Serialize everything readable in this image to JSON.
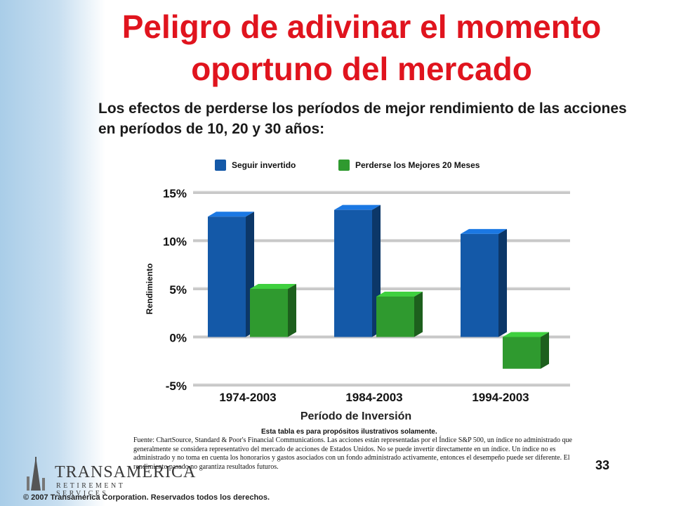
{
  "slide": {
    "title": "Peligro de adivinar el momento oportuno del mercado",
    "subtitle": "Los efectos de perderse los períodos de mejor rendimiento de las acciones en períodos de 10, 20 y 30 años:",
    "note": "Esta tabla es para propósitos ilustrativos solamente.",
    "source": "Fuente: ChartSource, Standard & Poor's Financial Communications. Las acciones están representadas por el Índice S&P 500, un índice no administrado que generalmente se considera representativo del mercado de acciones de Estados Unidos. No se puede invertir directamente en un índice. Un índice no es administrado y no toma en cuenta los honorarios y gastos asociados con un fondo administrado activamente, entonces el desempeño puede ser diferente. El rendimiento pasado no garantiza resultados futuros.",
    "page_number": "33",
    "copyright": "© 2007 Transamerica Corporation. Reservados todos los derechos.",
    "logo": {
      "name": "TRANSAMERICA",
      "tagline": "RETIREMENT SERVICES"
    }
  },
  "chart_data": {
    "type": "bar",
    "categories": [
      "1974-2003",
      "1984-2003",
      "1994-2003"
    ],
    "series": [
      {
        "name": "Seguir invertido",
        "color": "#1459a8",
        "values": [
          12.5,
          13.2,
          10.7
        ]
      },
      {
        "name": "Perderse los Mejores 20 Meses",
        "color": "#2f9a2f",
        "values": [
          5.0,
          4.2,
          -3.3
        ]
      }
    ],
    "xlabel": "Período de Inversión",
    "ylabel": "Rendimiento",
    "ylim": [
      -5,
      15
    ],
    "yticks": [
      15,
      10,
      5,
      0,
      -5
    ],
    "ytick_labels": [
      "15%",
      "10%",
      "5%",
      "0%",
      "-5%"
    ],
    "grid": true,
    "legend_position": "top"
  }
}
